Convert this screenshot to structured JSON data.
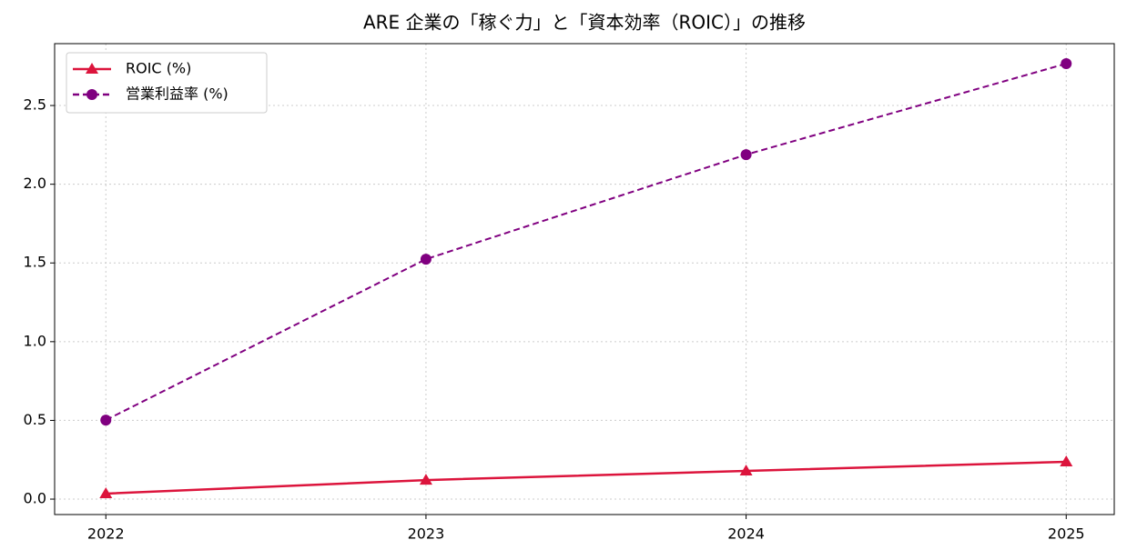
{
  "chart_data": {
    "type": "line",
    "title": "ARE 企業の「稼ぐ力」と「資本効率（ROIC）」の推移",
    "x": [
      2022,
      2023,
      2024,
      2025
    ],
    "series": [
      {
        "name": "ROIC (%)",
        "color": "#dc143c",
        "marker": "triangle",
        "linestyle": "solid",
        "values": [
          0.035,
          0.121,
          0.179,
          0.237
        ]
      },
      {
        "name": "営業利益率 (%)",
        "color": "#800080",
        "marker": "circle",
        "linestyle": "dashed",
        "values": [
          0.502,
          1.524,
          2.188,
          2.766
        ]
      }
    ],
    "xlim": [
      2021.84,
      2025.15
    ],
    "xticks": [
      2022,
      2023,
      2024,
      2025
    ],
    "ylim": [
      -0.098,
      2.893
    ],
    "yticks": [
      {
        "value": 0,
        "label": "0.0"
      },
      0.5,
      {
        "value": 1,
        "label": "1.0"
      },
      1.5,
      {
        "value": 2,
        "label": "2.0"
      },
      2.5
    ],
    "grid": true,
    "legend": "upper left"
  }
}
